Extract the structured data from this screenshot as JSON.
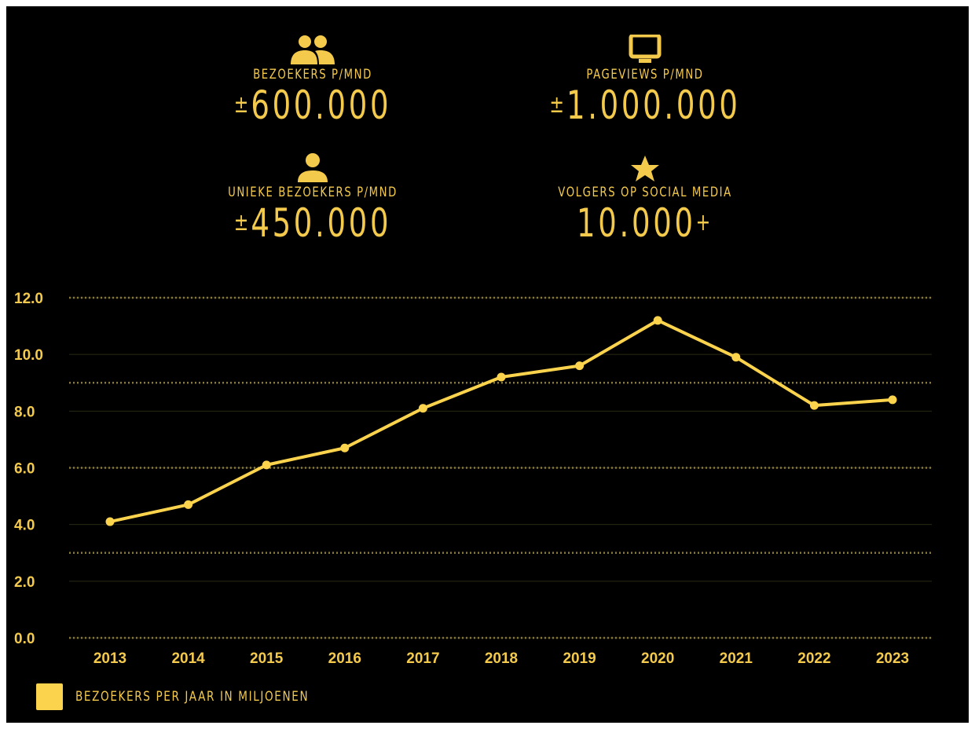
{
  "stats": [
    {
      "icon": "users-icon",
      "label": "BEZOEKERS P/MND",
      "prefix": "±",
      "value": "600.000",
      "suffix": ""
    },
    {
      "icon": "monitor-icon",
      "label": "PAGEVIEWS P/MND",
      "prefix": "±",
      "value": "1.000.000",
      "suffix": ""
    },
    {
      "icon": "user-icon",
      "label": "UNIEKE BEZOEKERS P/MND",
      "prefix": "±",
      "value": "450.000",
      "suffix": ""
    },
    {
      "icon": "star-icon",
      "label": "VOLGERS OP SOCIAL MEDIA",
      "prefix": "",
      "value": "10.000",
      "suffix": "+"
    }
  ],
  "colors": {
    "accent": "#f4ca4d",
    "line": "#fcd34d",
    "background": "#000000"
  },
  "chart_data": {
    "type": "line",
    "x": [
      "2013",
      "2014",
      "2015",
      "2016",
      "2017",
      "2018",
      "2019",
      "2020",
      "2021",
      "2022",
      "2023"
    ],
    "series": [
      {
        "name": "BEZOEKERS PER JAAR IN MILJOENEN",
        "values": [
          4.1,
          4.7,
          6.1,
          6.7,
          8.1,
          9.2,
          9.6,
          11.2,
          9.9,
          8.2,
          8.4
        ]
      }
    ],
    "yticks": [
      "0.0",
      "2.0",
      "4.0",
      "6.0",
      "8.0",
      "10.0",
      "12.0"
    ],
    "ylim": [
      0,
      12
    ],
    "legend_position": "bottom-left",
    "grid": true
  }
}
